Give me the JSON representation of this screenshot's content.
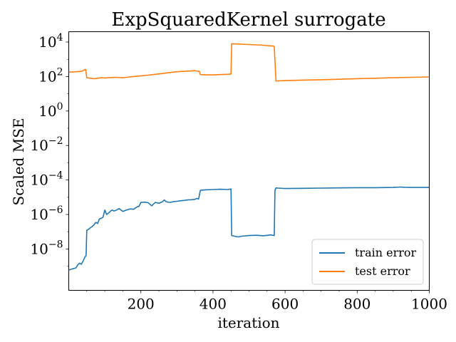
{
  "chart_data": {
    "type": "line",
    "title": "ExpSquaredKernel surrogate",
    "xlabel": "iteration",
    "ylabel": "Scaled MSE",
    "xlim": [
      0,
      1000
    ],
    "ylim_exp": [
      -10.4,
      4.6
    ],
    "y_scale": "log",
    "x_ticks": [
      {
        "value": 200,
        "label": "200"
      },
      {
        "value": 400,
        "label": "400"
      },
      {
        "value": 600,
        "label": "600"
      },
      {
        "value": 800,
        "label": "800"
      },
      {
        "value": 1000,
        "label": "1000"
      }
    ],
    "y_ticks": [
      {
        "exp": -8,
        "base": "10",
        "power": "−8"
      },
      {
        "exp": -6,
        "base": "10",
        "power": "−6"
      },
      {
        "exp": -4,
        "base": "10",
        "power": "−4"
      },
      {
        "exp": -2,
        "base": "10",
        "power": "−2"
      },
      {
        "exp": 0,
        "base": "10",
        "power": "0"
      },
      {
        "exp": 2,
        "base": "10",
        "power": "2"
      },
      {
        "exp": 4,
        "base": "10",
        "power": "4"
      }
    ],
    "grid": false,
    "legend_position": "lower-right",
    "series": [
      {
        "name": "train error",
        "color": "#1f77b4",
        "x": [
          0,
          10,
          20,
          25,
          30,
          35,
          40,
          45,
          48,
          50,
          55,
          60,
          65,
          70,
          75,
          80,
          85,
          90,
          95,
          100,
          105,
          110,
          115,
          120,
          125,
          130,
          140,
          150,
          160,
          170,
          180,
          190,
          195,
          200,
          210,
          220,
          230,
          240,
          250,
          260,
          265,
          270,
          280,
          290,
          300,
          310,
          320,
          330,
          340,
          350,
          355,
          360,
          365,
          370,
          380,
          400,
          420,
          440,
          450,
          452,
          460,
          470,
          480,
          500,
          520,
          540,
          560,
          570,
          572,
          575,
          580,
          600,
          650,
          700,
          750,
          800,
          850,
          900,
          920,
          930,
          950,
          1000
        ],
        "y": [
          6e-10,
          7e-10,
          8e-10,
          1.2e-09,
          1.5e-09,
          1.3e-09,
          2e-09,
          3.5e-09,
          4e-09,
          1.2e-07,
          1.4e-07,
          1.7e-07,
          2e-07,
          2.5e-07,
          3.5e-07,
          3e-07,
          5.5e-07,
          6e-07,
          7e-07,
          1.8e-06,
          1e-06,
          1.2e-06,
          1.5e-06,
          1.8e-06,
          1.6e-06,
          1.7e-06,
          2.2e-06,
          1.5e-06,
          1.8e-06,
          2.1e-06,
          2e-06,
          2.8e-06,
          3e-06,
          5e-06,
          5.2e-06,
          4.8e-06,
          3.2e-06,
          5e-06,
          4.5e-06,
          5.5e-06,
          7e-06,
          5.5e-06,
          5e-06,
          5.5e-06,
          5.8e-06,
          6.2e-06,
          6.5e-06,
          7e-06,
          7.2e-06,
          7.5e-06,
          8.5e-06,
          7.8e-06,
          2.5e-05,
          2.6e-05,
          2.7e-05,
          2.8e-05,
          2.9e-05,
          2.8e-05,
          3e-05,
          6e-08,
          5.5e-08,
          5e-08,
          5.5e-08,
          6e-08,
          6.2e-08,
          5.8e-08,
          6.5e-08,
          6e-08,
          2.5e-05,
          3.5e-05,
          3.4e-05,
          3.2e-05,
          3.3e-05,
          3.4e-05,
          3.5e-05,
          3.6e-05,
          3.6e-05,
          3.7e-05,
          3.9e-05,
          3.8e-05,
          3.7e-05,
          3.7e-05
        ]
      },
      {
        "name": "test error",
        "color": "#ff7f0e",
        "x": [
          0,
          20,
          35,
          40,
          45,
          47,
          50,
          60,
          70,
          80,
          90,
          100,
          110,
          120,
          130,
          140,
          150,
          160,
          170,
          180,
          190,
          200,
          220,
          240,
          260,
          280,
          300,
          320,
          340,
          350,
          358,
          362,
          365,
          380,
          400,
          420,
          440,
          450,
          452,
          460,
          500,
          540,
          560,
          568,
          570,
          575,
          600,
          650,
          700,
          750,
          800,
          850,
          900,
          950,
          1000
        ],
        "y": [
          180,
          190,
          200,
          220,
          260,
          250,
          85,
          80,
          75,
          80,
          85,
          82,
          85,
          88,
          90,
          88,
          85,
          90,
          95,
          100,
          105,
          110,
          120,
          135,
          150,
          170,
          190,
          200,
          210,
          220,
          200,
          200,
          130,
          125,
          125,
          130,
          135,
          140,
          8000,
          7800,
          7200,
          6500,
          6000,
          5800,
          5500,
          55,
          58,
          62,
          65,
          70,
          75,
          80,
          85,
          90,
          95
        ]
      }
    ]
  }
}
